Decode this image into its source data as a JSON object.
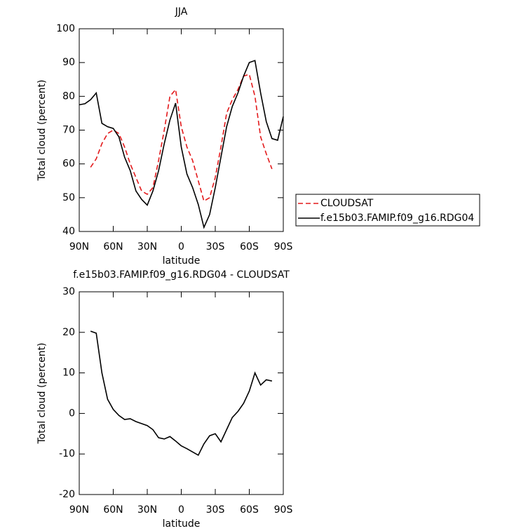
{
  "chart_data": [
    {
      "type": "line",
      "title": "JJA",
      "xlabel": "latitude",
      "ylabel": "Total cloud (percent)",
      "x": [
        90,
        85,
        80,
        75,
        70,
        65,
        60,
        55,
        50,
        45,
        40,
        35,
        30,
        25,
        20,
        15,
        10,
        5,
        0,
        -5,
        -10,
        -15,
        -20,
        -25,
        -30,
        -35,
        -40,
        -45,
        -50,
        -55,
        -60,
        -65,
        -70,
        -75,
        -80,
        -85,
        -90
      ],
      "series": [
        {
          "name": "CLOUDSAT",
          "color": "#e31a1c",
          "line_style": "dashed",
          "values": [
            null,
            null,
            59,
            61.5,
            66,
            69,
            70,
            69,
            65,
            60,
            56,
            52,
            51,
            53,
            61,
            70,
            80,
            82,
            71,
            65,
            61,
            55,
            49,
            50,
            56,
            65,
            75,
            79,
            82,
            86,
            86.5,
            80,
            68,
            63,
            58.5,
            null,
            null
          ]
        },
        {
          "name": "f.e15b03.FAMIP.f09_g16.RDG04",
          "color": "#000000",
          "line_style": "solid",
          "values": [
            77.5,
            77.8,
            79,
            81,
            72,
            71,
            70.5,
            68,
            62,
            58,
            52,
            49.5,
            47.8,
            52,
            58,
            66,
            73,
            78,
            65,
            57,
            53,
            48,
            41.2,
            45,
            53,
            62,
            71,
            77,
            81,
            86,
            90,
            90.6,
            81,
            72.5,
            67.5,
            67,
            74
          ]
        }
      ],
      "xlim": [
        90,
        -90
      ],
      "xticks": [
        {
          "value": 90,
          "label": "90N"
        },
        {
          "value": 60,
          "label": "60N"
        },
        {
          "value": 30,
          "label": "30N"
        },
        0,
        {
          "value": -30,
          "label": "30S"
        },
        {
          "value": -60,
          "label": "60S"
        },
        {
          "value": -90,
          "label": "90S"
        }
      ],
      "ylim": [
        40,
        100
      ],
      "yticks": [
        40,
        50,
        60,
        70,
        80,
        90,
        100
      ],
      "legend": "right"
    },
    {
      "type": "line",
      "title": "f.e15b03.FAMIP.f09_g16.RDG04 - CLOUDSAT",
      "xlabel": "latitude",
      "ylabel": "Total cloud (percent)",
      "x": [
        80,
        75,
        70,
        65,
        60,
        55,
        50,
        45,
        40,
        35,
        30,
        25,
        20,
        15,
        10,
        5,
        0,
        -5,
        -10,
        -15,
        -20,
        -25,
        -30,
        -35,
        -40,
        -45,
        -50,
        -55,
        -60,
        -65,
        -70,
        -75,
        -80
      ],
      "series": [
        {
          "color": "#000000",
          "line_style": "solid",
          "values": [
            20.3,
            19.8,
            10,
            3.5,
            1,
            -0.5,
            -1.5,
            -1.3,
            -2,
            -2.5,
            -3,
            -4,
            -6,
            -6.3,
            -5.7,
            -6.8,
            -8,
            -8.7,
            -9.5,
            -10.3,
            -7.5,
            -5.5,
            -5,
            -7,
            -4,
            -1,
            0.5,
            2.5,
            5.5,
            10,
            7,
            8.3,
            8
          ]
        }
      ],
      "xlim": [
        90,
        -90
      ],
      "xticks": [
        {
          "value": 90,
          "label": "90N"
        },
        {
          "value": 60,
          "label": "60N"
        },
        {
          "value": 30,
          "label": "30N"
        },
        0,
        {
          "value": -30,
          "label": "30S"
        },
        {
          "value": -60,
          "label": "60S"
        },
        {
          "value": -90,
          "label": "90S"
        }
      ],
      "ylim": [
        -20,
        30
      ],
      "yticks": [
        -20,
        -10,
        0,
        10,
        20,
        30
      ]
    }
  ]
}
